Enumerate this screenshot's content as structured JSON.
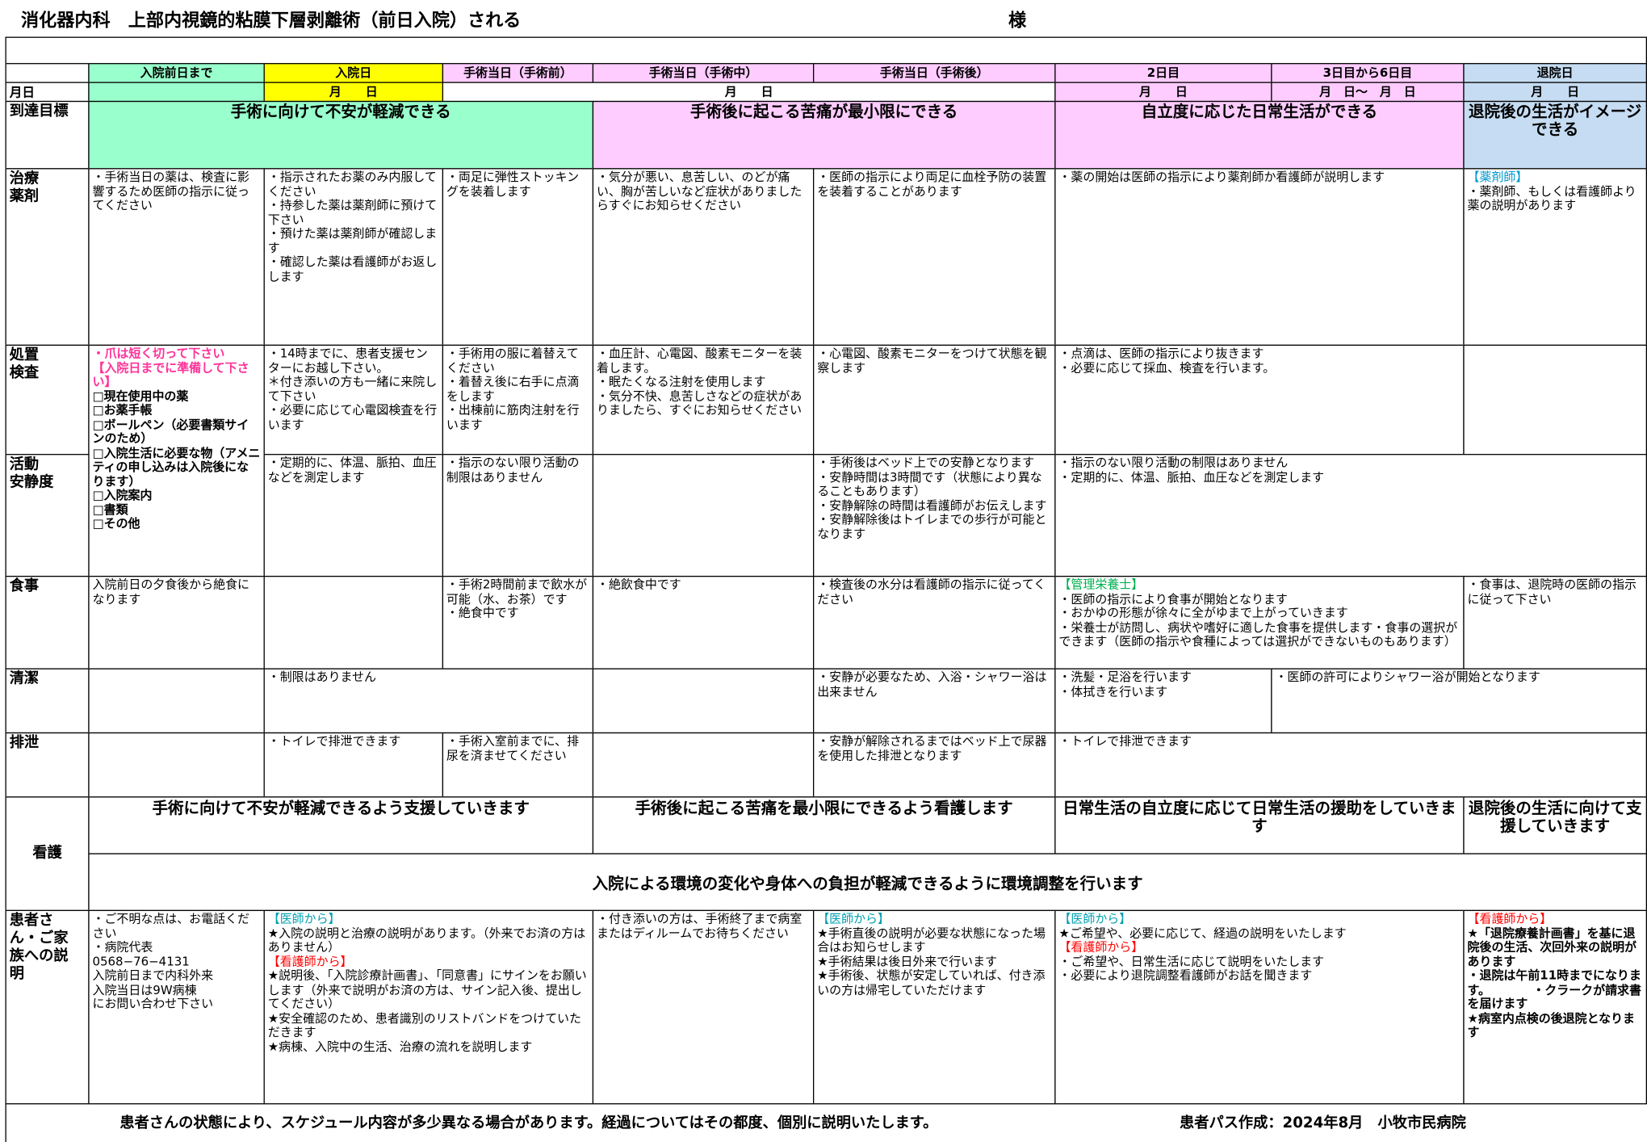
{
  "header": {
    "title": "消化器内科　上部内視鏡的粘膜下層剥離術（前日入院）される",
    "honorific": "様"
  },
  "columns": [
    "入院前日まで",
    "入院日",
    "手術当日（手術前）",
    "手術当日（手術中）",
    "手術当日（手術後）",
    "2日目",
    "3日目から6日目",
    "退院日"
  ],
  "dates": {
    "label": "月日",
    "cells": [
      "月　　日",
      "月　　日",
      "月　　日",
      "月　日〜　月　日",
      "月　　日"
    ]
  },
  "rows": [
    {
      "label": "到達目標",
      "cells": [
        [
          "手術に向けて不安が軽減できる"
        ],
        [
          "手術後に起こる苦痛が最小限にできる"
        ],
        [
          "自立度に応じた日常生活ができる"
        ],
        [
          "退院後の生活がイメージできる"
        ]
      ]
    },
    {
      "label": "治療\n薬剤",
      "cells": [
        [
          "・手術当日の薬は、検査に影響するため医師の指示に従ってください"
        ],
        [
          "・指示されたお薬のみ内服してください",
          "・持参した薬は薬剤師に預けて下さい",
          "・預けた薬は薬剤師が確認します",
          "・確認した薬は看護師がお返しします"
        ],
        [
          "・両足に弾性ストッキングを装着します"
        ],
        [
          "・気分が悪い、息苦しい、のどが痛い、胸が苦しいなど症状がありましたらすぐにお知らせください"
        ],
        [
          "・医師の指示により両足に血栓予防の装置を装着することがあります"
        ],
        [
          "・薬の開始は医師の指示により薬剤師か看護師が説明します"
        ],
        [
          {
            "text": "【薬剤師】",
            "color": "#0099cc"
          },
          "・薬剤師、もしくは看護師より薬の説明があります"
        ]
      ]
    },
    {
      "label": "処置\n検査",
      "cells": [
        [
          {
            "text": "・爪は短く切って下さい",
            "color": "#ff3399",
            "bold": true
          },
          {
            "text": "【入院日までに準備して下さい】",
            "color": "#ff3399",
            "bold": true
          },
          {
            "text": "□現在使用中の薬",
            "bold": true
          },
          {
            "text": "□お薬手帳",
            "bold": true
          },
          {
            "text": "□ボールペン（必要書類サインのため）",
            "bold": true
          },
          {
            "text": "□入院生活に必要な物（アメニティの申し込みは入院後になります）",
            "bold": true
          },
          {
            "text": "□入院案内",
            "bold": true
          },
          {
            "text": "□書類",
            "bold": true
          },
          {
            "text": "□その他",
            "bold": true
          }
        ],
        [
          "・14時までに、患者支援センターにお越し下さい。",
          "＊付き添いの方も一緒に来院して下さい",
          "・必要に応じて心電図検査を行います"
        ],
        [
          "・手術用の服に着替えてください",
          "・着替え後に右手に点滴をします",
          "・出棟前に筋肉注射を行います"
        ],
        [
          "・血圧計、心電図、酸素モニターを装着します。",
          "・眠たくなる注射を使用します",
          "・気分不快、息苦しさなどの症状がありましたら、すぐにお知らせください"
        ],
        [
          "・心電図、酸素モニターをつけて状態を観察します"
        ],
        [
          "・点滴は、医師の指示により抜きます",
          "・必要に応じて採血、検査を行います。"
        ],
        []
      ]
    },
    {
      "label": "活動\n安静度",
      "cells": [
        [
          "・定期的に、体温、脈拍、血圧などを測定します"
        ],
        [
          "・指示のない限り活動の制限はありません"
        ],
        [],
        [
          "・手術後はベッド上での安静となります",
          "・安静時間は3時間です（状態により異なることもあります）",
          "・安静解除の時間は看護師がお伝えします",
          "・安静解除後はトイレまでの歩行が可能となります"
        ],
        [
          "・指示のない限り活動の制限はありません",
          "・定期的に、体温、脈拍、血圧などを測定します"
        ]
      ]
    },
    {
      "label": "食事",
      "cells": [
        [
          "入院前日の夕食後から絶食になります"
        ],
        [],
        [
          "・手術2時間前まで飲水が可能（水、お茶）です",
          "・絶食中です"
        ],
        [
          "・絶飲食中です"
        ],
        [
          "・検査後の水分は看護師の指示に従ってください"
        ],
        [
          {
            "text": "【管理栄養士】",
            "color": "#00b050"
          },
          "・医師の指示により食事が開始となります",
          "・おかゆの形態が徐々に全がゆまで上がっていきます",
          "・栄養士が訪問し、病状や嗜好に適した食事を提供します・食事の選択ができます（医師の指示や食種によっては選択ができないものもあります）"
        ],
        [
          "・食事は、退院時の医師の指示に従って下さい"
        ]
      ]
    },
    {
      "label": "清潔",
      "cells": [
        [],
        [
          "・制限はありません"
        ],
        [],
        [
          "・安静が必要なため、入浴・シャワー浴は出来ません"
        ],
        [
          "・洗髪・足浴を行います",
          "・体拭きを行います"
        ],
        [
          "・医師の許可によりシャワー浴が開始となります"
        ]
      ]
    },
    {
      "label": "排泄",
      "cells": [
        [],
        [
          "・トイレで排泄できます"
        ],
        [
          "・手術入室前までに、排尿を済ませてください"
        ],
        [],
        [
          "・安静が解除されるまではベッド上で尿器を使用した排泄となります"
        ],
        [
          "・トイレで排泄できます"
        ]
      ]
    },
    {
      "label": "看護",
      "cells": [
        [
          "手術に向けて不安が軽減できるよう支援していきます"
        ],
        [
          "手術後に起こる苦痛を最小限にできるよう看護します"
        ],
        [
          "日常生活の自立度に応じて日常生活の援助をしていきます"
        ],
        [
          "退院後の生活に向けて支援していきます"
        ],
        [
          "入院による環境の変化や身体への負担が軽減できるように環境調整を行います"
        ]
      ]
    },
    {
      "label": "患者さ\nん・ご家\n族への説\n明",
      "cells": [
        [
          "・ご不明な点は、お電話ください",
          "・病院代表",
          "0568−76−4131",
          "入院前日まで内科外来",
          "入院当日は9W病棟",
          "にお問い合わせ下さい"
        ],
        [
          {
            "text": "【医師から】",
            "color": "#00a0b0"
          },
          "★入院の説明と治療の説明があります。（外来でお済の方はありません）",
          {
            "text": "【看護師から】",
            "color": "#ff0000"
          },
          "★説明後、「入院診療計画書」、「同意書」にサインをお願いします（外来で説明がお済の方は、サイン記入後、提出してください）",
          "★安全確認のため、患者識別のリストバンドをつけていただきます",
          "★病棟、入院中の生活、治療の流れを説明します"
        ],
        [
          "・付き添いの方は、手術終了まで病室またはディルームでお待ちください"
        ],
        [
          {
            "text": "【医師から】",
            "color": "#00a0b0"
          },
          "★手術直後の説明が必要な状態になった場合はお知らせします",
          "★手術結果は後日外来で行います",
          "★手術後、状態が安定していれば、付き添いの方は帰宅していただけます"
        ],
        [
          {
            "text": "【医師から】",
            "color": "#00a0b0"
          },
          "★ご希望や、必要に応じて、経過の説明をいたします",
          {
            "text": "【看護師から】",
            "color": "#ff0000"
          },
          "・ご希望や、日常生活に応じて説明をいたします",
          "・必要により退院調整看護師がお話を聞きます"
        ],
        [
          {
            "text": "【看護師から】",
            "color": "#ff0000"
          },
          {
            "text": "★「退院療養計画書」を基に退院後の生活、次回外来の説明があります",
            "bold": true
          },
          {
            "text": "・退院は午前11時までになります。　　　　・クラークが請求書を届けます",
            "bold": true
          },
          {
            "text": "★病室内点検の後退院となります",
            "bold": true
          }
        ]
      ]
    }
  ],
  "footer": {
    "note": "患者さんの状態により、スケジュール内容が多少異なる場合があります。経過についてはその都度、個別に説明いたします。",
    "credit": "患者パス作成：2024年8月　小牧市民病院"
  }
}
